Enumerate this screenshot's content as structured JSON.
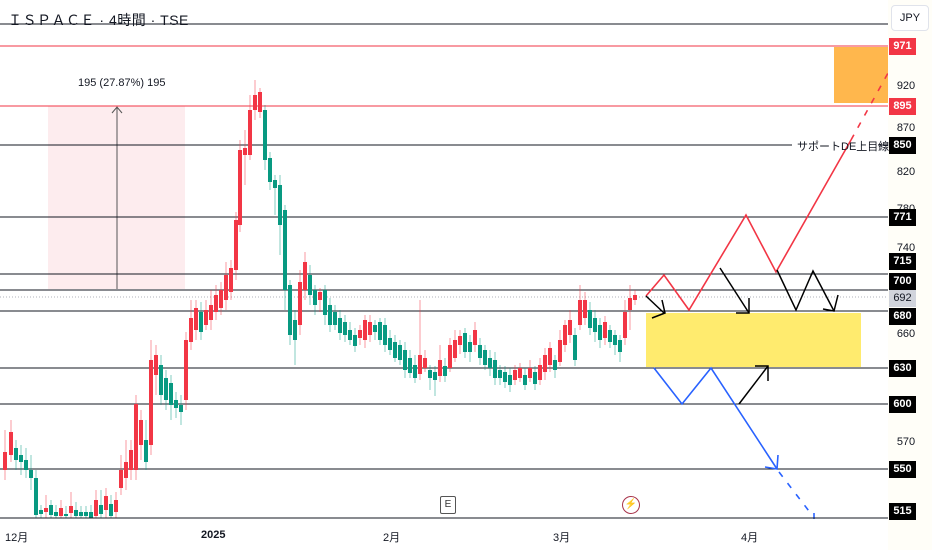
{
  "header": {
    "title": "ＩＳＰＡＣＥ · 4時間 · TSE",
    "currency": "JPY"
  },
  "colors": {
    "up": "#f23645",
    "down": "#089981",
    "level_line": "#131722",
    "resistance_red": "#f23645",
    "target_box": "#ffb74d",
    "buy_zone": "#ffeb6e",
    "measure_fill": "#fdecee",
    "bull_path": "#f23645",
    "bear_path": "#2962ff",
    "arrow": "#000000"
  },
  "price_axis": {
    "ticks": [
      "920",
      "870",
      "820",
      "780",
      "740",
      "660",
      "570"
    ],
    "badges": [
      {
        "value": "971",
        "style": "red"
      },
      {
        "value": "895",
        "style": "red"
      },
      {
        "value": "850",
        "style": "black"
      },
      {
        "value": "771",
        "style": "black"
      },
      {
        "value": "715",
        "style": "black"
      },
      {
        "value": "700",
        "style": "black"
      },
      {
        "value": "692",
        "style": "grey"
      },
      {
        "value": "680",
        "style": "black"
      },
      {
        "value": "630",
        "style": "black"
      },
      {
        "value": "600",
        "style": "black"
      },
      {
        "value": "550",
        "style": "black"
      },
      {
        "value": "515",
        "style": "black"
      }
    ]
  },
  "time_axis": {
    "labels": [
      {
        "text": "12月",
        "bold": false
      },
      {
        "text": "2025",
        "bold": true
      },
      {
        "text": "2月",
        "bold": false
      },
      {
        "text": "3月",
        "bold": false
      },
      {
        "text": "4月",
        "bold": false
      }
    ]
  },
  "annotations": {
    "measure_text": "195 (27.87%) 195",
    "support_label": "サポートDE上目線",
    "earnings_marker": "E",
    "dividend_marker": "⚡"
  },
  "chart_data": {
    "type": "candlestick",
    "title": "ＩＳＰＡＣＥ · 4時間 · TSE",
    "xlabel": "",
    "ylabel": "JPY",
    "x_tick_labels": [
      "12月",
      "2025",
      "2月",
      "3月",
      "4月"
    ],
    "ylim": [
      500,
      990
    ],
    "y_ticks": [
      515,
      550,
      570,
      600,
      630,
      660,
      680,
      692,
      700,
      715,
      740,
      771,
      780,
      820,
      850,
      870,
      895,
      920,
      971
    ],
    "current_price": 692,
    "horizontal_levels": [
      {
        "price": 971,
        "color": "red"
      },
      {
        "price": 895,
        "color": "red"
      },
      {
        "price": 850,
        "color": "black",
        "label": "サポートDE上目線"
      },
      {
        "price": 771,
        "color": "black"
      },
      {
        "price": 715,
        "color": "black"
      },
      {
        "price": 700,
        "color": "black"
      },
      {
        "price": 680,
        "color": "black"
      },
      {
        "price": 630,
        "color": "black"
      },
      {
        "price": 600,
        "color": "black"
      },
      {
        "price": 550,
        "color": "black"
      },
      {
        "price": 515,
        "color": "black"
      }
    ],
    "zones": [
      {
        "name": "target",
        "from": 895,
        "to": 971,
        "color": "orange"
      },
      {
        "name": "buy_zone",
        "from": 630,
        "to": 680,
        "color": "yellow"
      }
    ],
    "measure": {
      "change": 195,
      "percent": 27.87,
      "bars": 195
    },
    "approx_price_path": [
      {
        "period": "late Nov",
        "close": 580
      },
      {
        "period": "early Dec",
        "close": 520
      },
      {
        "period": "mid Dec",
        "close": 600
      },
      {
        "period": "late Dec",
        "close": 680
      },
      {
        "period": "early Jan peak",
        "close": 930
      },
      {
        "period": "mid Jan",
        "close": 700
      },
      {
        "period": "late Jan",
        "close": 650
      },
      {
        "period": "mid Feb",
        "close": 625
      },
      {
        "period": "late Feb",
        "close": 620
      },
      {
        "period": "early Mar",
        "close": 685
      },
      {
        "period": "mid Mar",
        "close": 692
      }
    ],
    "legend": []
  }
}
